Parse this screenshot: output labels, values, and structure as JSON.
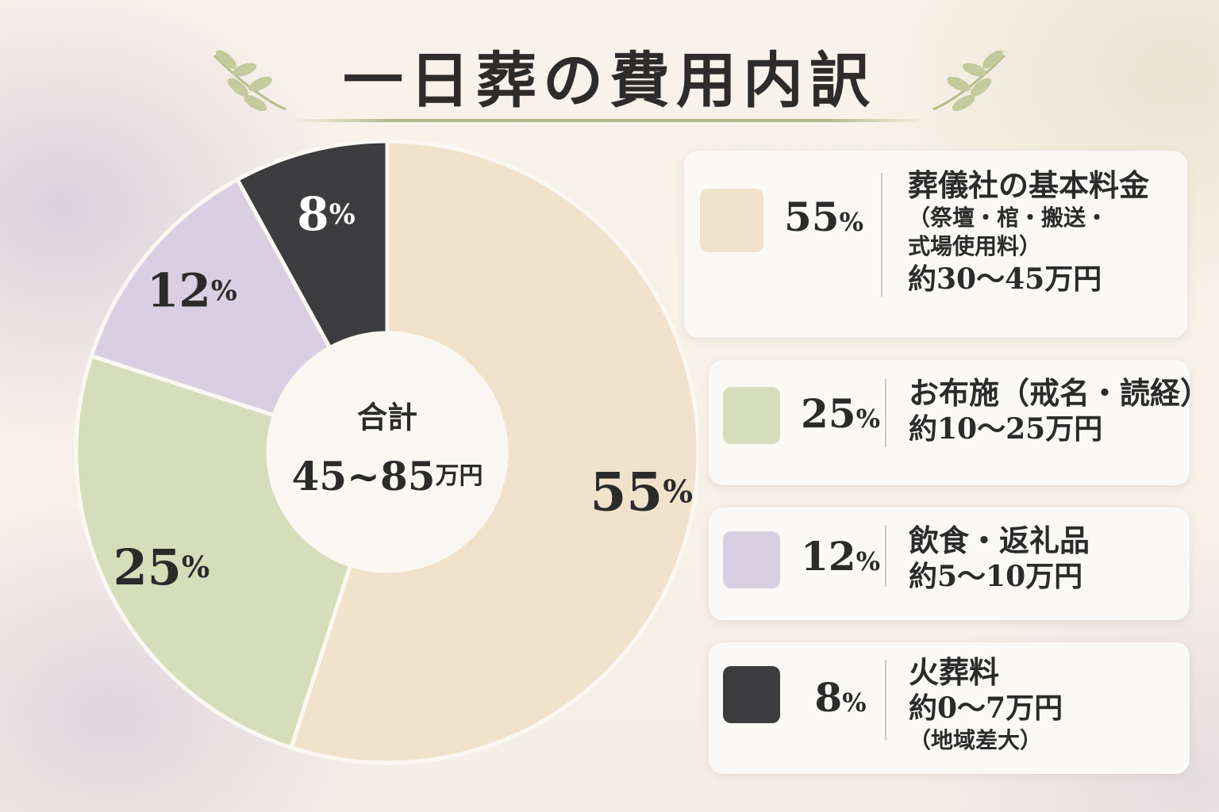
{
  "title": "一日葬の費用内訳",
  "colors": {
    "accent_green": "#b8c08f",
    "background": "#f7f1e8"
  },
  "chart_data": {
    "type": "pie",
    "title": "一日葬の費用内訳",
    "center_label": "合計",
    "center_value": "45~85",
    "center_unit": "万円",
    "categories": [
      "葬儀社の基本料金",
      "お布施",
      "飲食・返礼品",
      "火葬料"
    ],
    "values": [
      55,
      25,
      12,
      8
    ],
    "value_labels": [
      "55",
      "25",
      "12",
      "8"
    ],
    "unit": "%",
    "colors": [
      "#f1e2cc",
      "#d6ddbb",
      "#d8d0e2",
      "#3d3d3f"
    ],
    "label_colors": [
      "#2b2b2b",
      "#2b2b2b",
      "#2b2b2b",
      "#ffffff"
    ]
  },
  "legend": [
    {
      "percent": "55",
      "unit": "%",
      "color": "#f1e2cc",
      "lines": [
        {
          "text": "葬儀社の基本料金",
          "style": "name"
        },
        {
          "text": "（祭壇・棺・搬送・",
          "style": "sub"
        },
        {
          "text": "式場使用料）",
          "style": "sub"
        },
        {
          "text": "約30～45万円",
          "style": "cost"
        }
      ]
    },
    {
      "percent": "25",
      "unit": "%",
      "color": "#d6ddbb",
      "lines": [
        {
          "text": "お布施（戒名・読経）",
          "style": "name"
        },
        {
          "text": "約10～25万円",
          "style": "cost"
        }
      ]
    },
    {
      "percent": "12",
      "unit": "%",
      "color": "#d8d0e2",
      "lines": [
        {
          "text": "飲食・返礼品",
          "style": "name"
        },
        {
          "text": "約5～10万円",
          "style": "cost"
        }
      ]
    },
    {
      "percent": "8",
      "unit": "%",
      "color": "#3d3d3f",
      "lines": [
        {
          "text": "火葬料",
          "style": "name"
        },
        {
          "text": "約0～7万円",
          "style": "cost"
        },
        {
          "text": "（地域差大）",
          "style": "note"
        }
      ]
    }
  ]
}
